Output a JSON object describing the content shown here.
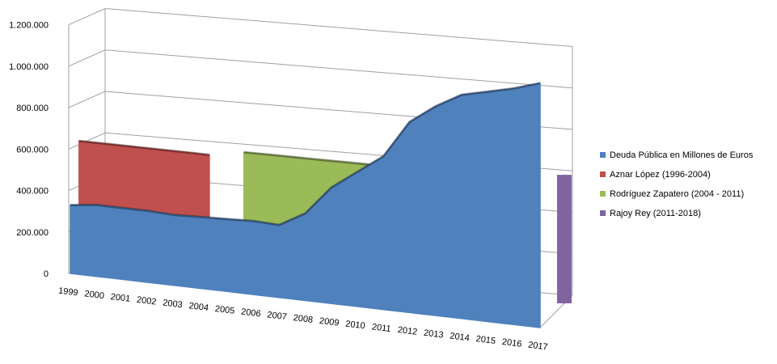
{
  "chart_data": {
    "type": "area",
    "style": "3d-area",
    "categories": [
      "1999",
      "2000",
      "2001",
      "2002",
      "2003",
      "2004",
      "2005",
      "2006",
      "2007",
      "2008",
      "2009",
      "2010",
      "2011",
      "2012",
      "2013",
      "2014",
      "2015",
      "2016",
      "2017"
    ],
    "ylim": [
      0,
      1200000
    ],
    "yticks": [
      0,
      200000,
      400000,
      600000,
      800000,
      1000000,
      1200000
    ],
    "ytick_labels": [
      "0",
      "200.000",
      "400.000",
      "600.000",
      "800.000",
      "1.000.000",
      "1.200.000"
    ],
    "grid": true,
    "legend_position": "right",
    "series": [
      {
        "name": "Deuda Pública en Millones de Euros",
        "color": "#4f81bd",
        "values": [
          330000,
          345000,
          345000,
          345000,
          340000,
          345000,
          350000,
          355000,
          350000,
          420000,
          560000,
          650000,
          740000,
          920000,
          1010000,
          1080000,
          1110000,
          1140000,
          1180000
        ]
      },
      {
        "name": "Aznar López (1996-2004)",
        "color": "#c0504d",
        "values": [
          620000,
          null,
          null,
          null,
          null,
          620000,
          null,
          null,
          null,
          null,
          null,
          null,
          null,
          null,
          null,
          null,
          null,
          null,
          null
        ]
      },
      {
        "name": "Rodríguez Zapatero  (2004 - 2011)",
        "color": "#9bbb59",
        "values": [
          null,
          null,
          null,
          null,
          null,
          null,
          620000,
          null,
          null,
          null,
          null,
          null,
          620000,
          null,
          null,
          null,
          null,
          null,
          null
        ]
      },
      {
        "name": "Rajoy Rey (2011-2018)",
        "color": "#8064a2",
        "values": [
          null,
          null,
          null,
          null,
          null,
          null,
          null,
          null,
          null,
          null,
          null,
          null,
          null,
          null,
          null,
          null,
          null,
          null,
          620000
        ]
      }
    ]
  }
}
